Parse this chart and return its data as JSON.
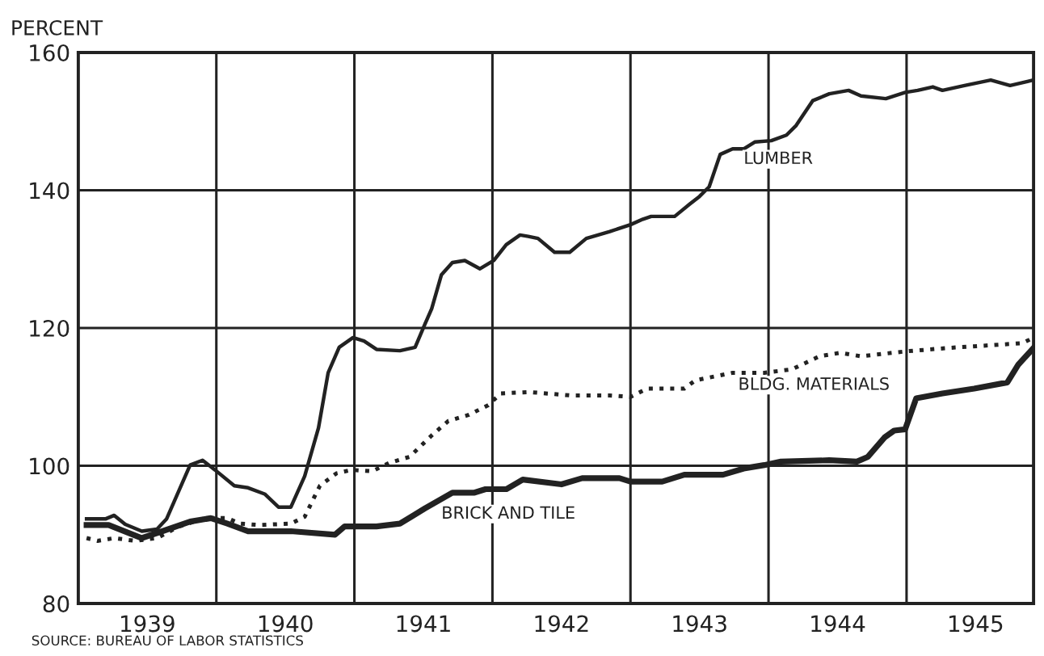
{
  "chart_data": {
    "type": "line",
    "ylabel": "PERCENT",
    "xlim": [
      1939,
      1945.92
    ],
    "ylim": [
      80,
      160
    ],
    "yticks": [
      80,
      100,
      120,
      140,
      160
    ],
    "xticks": [
      {
        "value": 1939.5,
        "label": "1939"
      },
      {
        "value": 1940,
        "label": null
      },
      {
        "value": 1940.5,
        "label": "1940"
      },
      {
        "value": 1941,
        "label": null
      },
      {
        "value": 1941.5,
        "label": "1941"
      },
      {
        "value": 1942,
        "label": null
      },
      {
        "value": 1942.5,
        "label": "1942"
      },
      {
        "value": 1943,
        "label": null
      },
      {
        "value": 1943.5,
        "label": "1943"
      },
      {
        "value": 1944,
        "label": null
      },
      {
        "value": 1944.5,
        "label": "1944"
      },
      {
        "value": 1945,
        "label": null
      },
      {
        "value": 1945.5,
        "label": "1945"
      }
    ],
    "grid": true,
    "legend": false,
    "marker": "none",
    "series": [
      {
        "name": "LUMBER",
        "color": "#222222",
        "line_style": "solid",
        "x": [
          1939.06,
          1939.2,
          1939.26,
          1939.34,
          1939.46,
          1939.57,
          1939.64,
          1939.81,
          1939.9,
          1939.99,
          1940.13,
          1940.23,
          1940.35,
          1940.45,
          1940.54,
          1940.64,
          1940.74,
          1940.81,
          1940.89,
          1940.99,
          1941.07,
          1941.16,
          1941.33,
          1941.44,
          1941.51,
          1941.56,
          1941.63,
          1941.71,
          1941.8,
          1941.91,
          1942.01,
          1942.1,
          1942.2,
          1942.26,
          1942.33,
          1942.45,
          1942.56,
          1942.68,
          1942.85,
          1943.0,
          1943.09,
          1943.15,
          1943.32,
          1943.43,
          1943.5,
          1943.57,
          1943.65,
          1943.74,
          1943.82,
          1943.9,
          1944.02,
          1944.13,
          1944.2,
          1944.32,
          1944.44,
          1944.58,
          1944.67,
          1944.85,
          1944.99,
          1945.08,
          1945.19,
          1945.26,
          1945.42,
          1945.61,
          1945.75,
          1945.92
        ],
        "values": [
          92.3,
          92.3,
          92.8,
          91.5,
          90.5,
          90.8,
          92.3,
          100.1,
          100.8,
          99.4,
          97.1,
          96.8,
          95.9,
          94.0,
          94.0,
          98.5,
          105.5,
          113.5,
          117.2,
          118.6,
          118.1,
          116.9,
          116.7,
          117.2,
          120.5,
          122.8,
          127.7,
          129.5,
          129.8,
          128.6,
          129.8,
          132.1,
          133.5,
          133.3,
          133.0,
          131.0,
          131.0,
          133.0,
          134.0,
          135.0,
          135.8,
          136.2,
          136.2,
          138.0,
          139.1,
          140.5,
          145.2,
          146.0,
          146.0,
          147.0,
          147.2,
          148.0,
          149.4,
          153.0,
          154.0,
          154.5,
          153.7,
          153.3,
          154.2,
          154.5,
          155.0,
          154.5,
          155.2,
          156.0,
          155.2,
          156.0
        ]
      },
      {
        "name": "BLDG. MATERIALS",
        "color": "#222222",
        "line_style": "dotted",
        "x": [
          1939.06,
          1939.14,
          1939.26,
          1939.41,
          1939.57,
          1939.73,
          1939.92,
          1940.08,
          1940.17,
          1940.31,
          1940.54,
          1940.64,
          1940.75,
          1940.87,
          1940.98,
          1941.13,
          1941.25,
          1941.4,
          1941.56,
          1941.68,
          1941.83,
          1941.97,
          1942.06,
          1942.27,
          1942.57,
          1942.85,
          1943.0,
          1943.12,
          1943.39,
          1943.47,
          1943.74,
          1943.97,
          1944.17,
          1944.37,
          1944.52,
          1944.67,
          1944.99,
          1945.3,
          1945.61,
          1945.84,
          1945.92
        ],
        "values": [
          89.5,
          89.1,
          89.5,
          89.1,
          89.5,
          91.2,
          92.4,
          92.4,
          91.6,
          91.4,
          91.6,
          92.6,
          97.1,
          98.9,
          99.4,
          99.2,
          100.4,
          101.3,
          104.4,
          106.5,
          107.4,
          108.8,
          110.5,
          110.7,
          110.2,
          110.2,
          110.0,
          111.2,
          111.2,
          112.4,
          113.5,
          113.5,
          114.0,
          115.9,
          116.4,
          115.9,
          116.6,
          117.1,
          117.5,
          117.8,
          118.6
        ]
      },
      {
        "name": "BRICK AND TILE",
        "color": "#222222",
        "line_style": "solid",
        "x": [
          1939.06,
          1939.22,
          1939.46,
          1939.61,
          1939.81,
          1939.96,
          1940.08,
          1940.23,
          1940.54,
          1940.86,
          1940.93,
          1941.16,
          1941.33,
          1941.51,
          1941.71,
          1941.87,
          1941.95,
          1942.1,
          1942.22,
          1942.5,
          1942.65,
          1942.92,
          1943.0,
          1943.23,
          1943.39,
          1943.67,
          1943.82,
          1943.97,
          1944.09,
          1944.44,
          1944.64,
          1944.72,
          1944.84,
          1944.91,
          1944.99,
          1945.07,
          1945.26,
          1945.49,
          1945.73,
          1945.81,
          1945.92
        ],
        "values": [
          91.4,
          91.4,
          89.5,
          90.5,
          91.9,
          92.4,
          91.6,
          90.5,
          90.5,
          90.0,
          91.2,
          91.2,
          91.6,
          93.8,
          96.1,
          96.1,
          96.6,
          96.6,
          98.0,
          97.3,
          98.2,
          98.2,
          97.7,
          97.7,
          98.7,
          98.7,
          99.6,
          100.1,
          100.6,
          100.8,
          100.6,
          101.3,
          104.1,
          105.1,
          105.3,
          109.8,
          110.5,
          111.2,
          112.1,
          114.7,
          117.1
        ]
      }
    ],
    "annotations": [
      "SOURCE: BUREAU OF LABOR STATISTICS"
    ]
  }
}
